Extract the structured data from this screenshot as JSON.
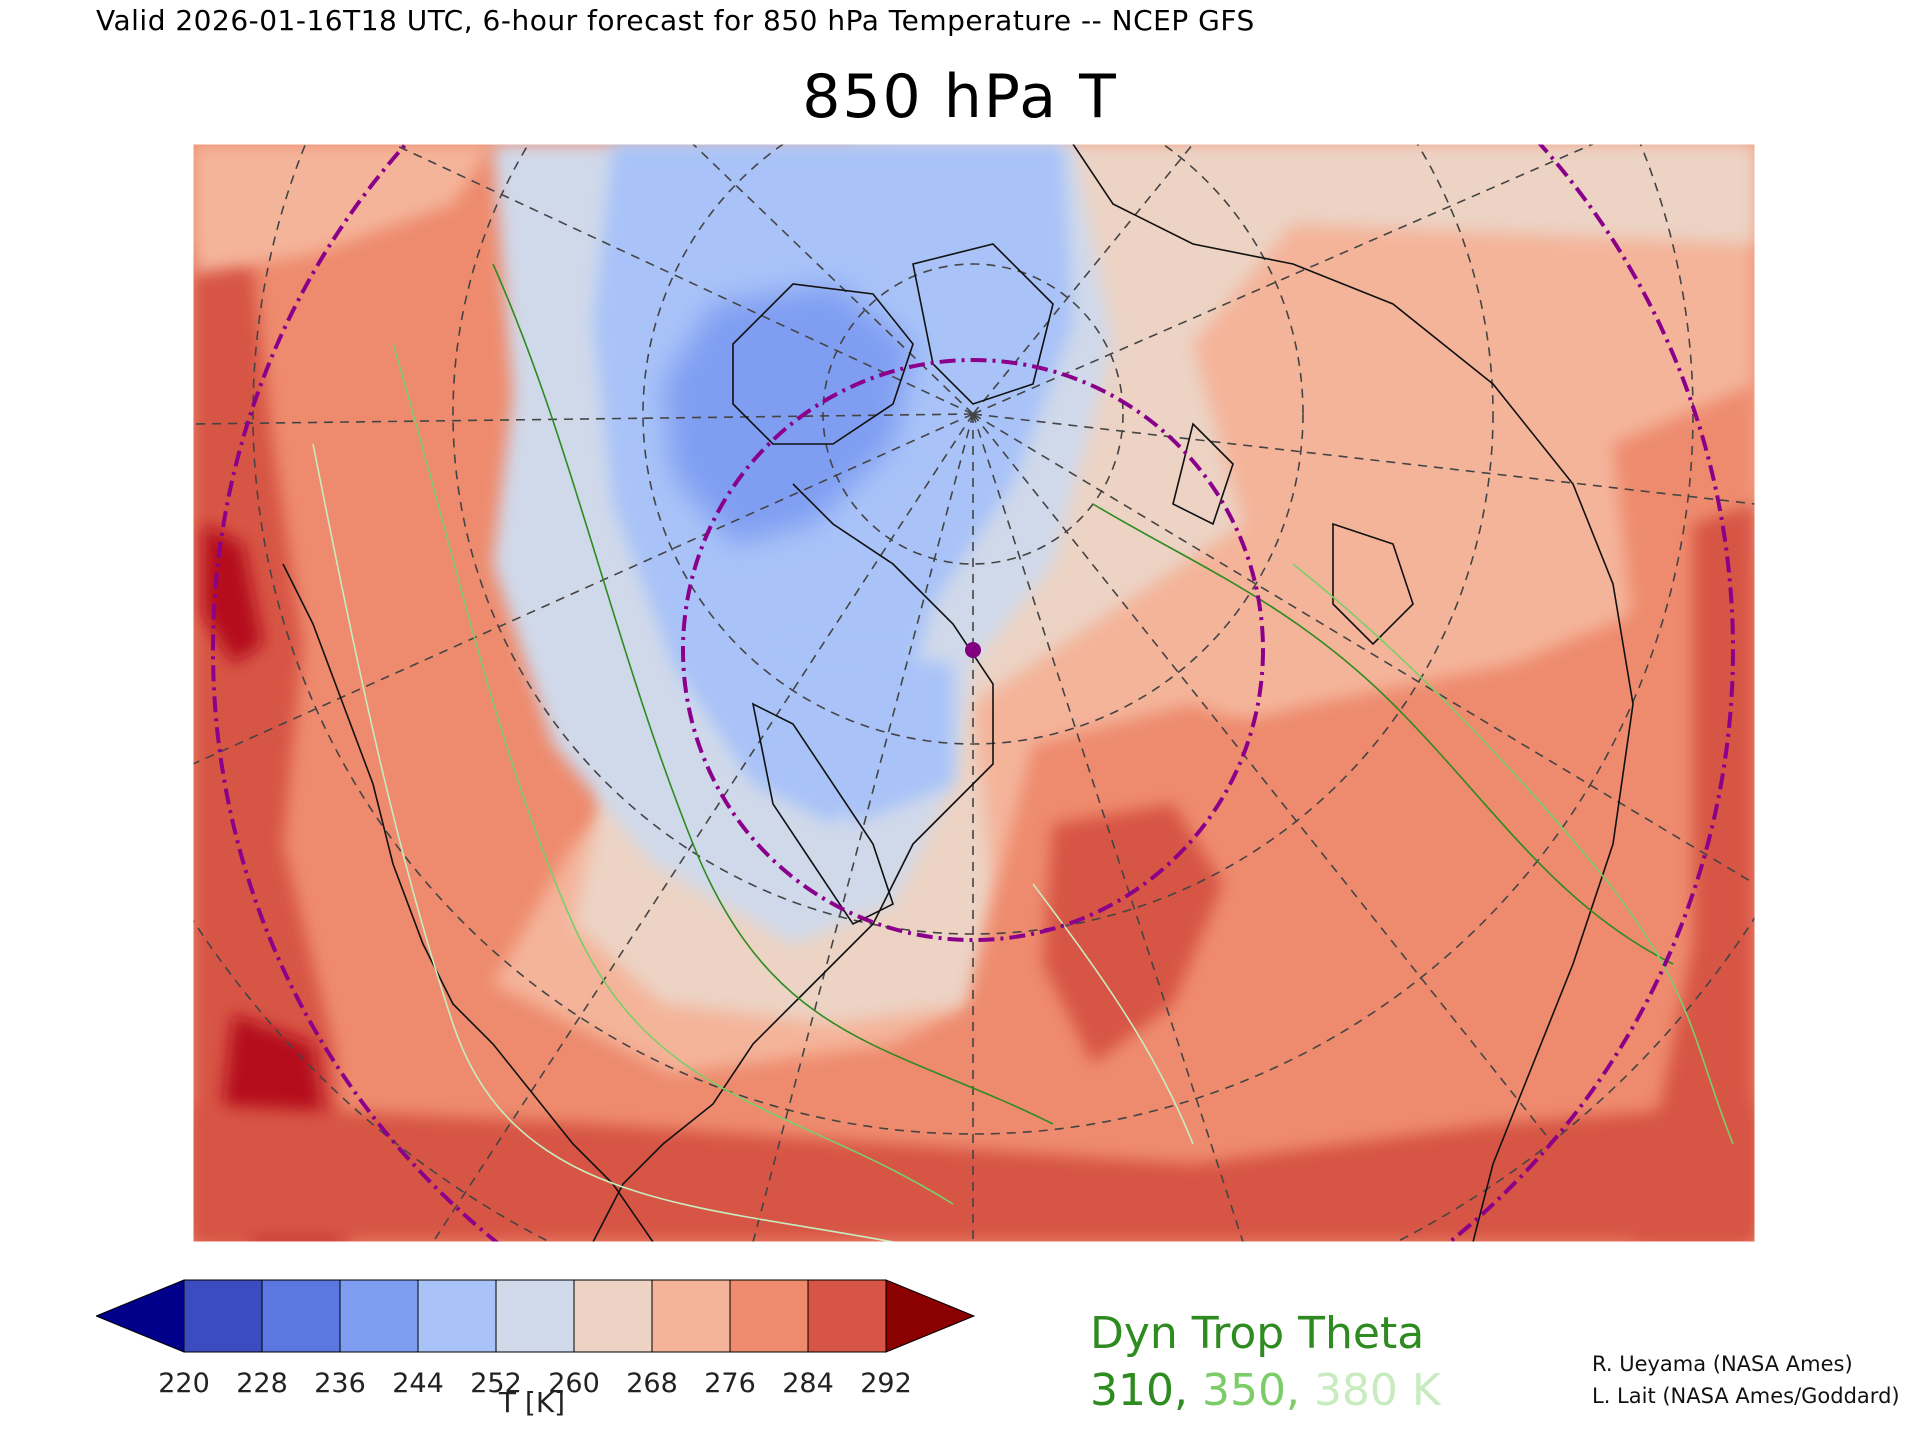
{
  "header": {
    "valid_line": "Valid 2026-01-16T18 UTC, 6-hour forecast for 850 hPa Temperature -- NCEP GFS"
  },
  "map": {
    "title": "850 hPa T",
    "marker_color": "#800080",
    "circle_color": "#8b008b"
  },
  "colorbar": {
    "unit_label": "T [K]",
    "ticks": [
      "220",
      "228",
      "236",
      "244",
      "252",
      "260",
      "268",
      "276",
      "284",
      "292"
    ],
    "bins": [
      {
        "color": "#3b4cc0"
      },
      {
        "color": "#5a78e0"
      },
      {
        "color": "#7f9ef2"
      },
      {
        "color": "#a9c3f8"
      },
      {
        "color": "#d0d9ea"
      },
      {
        "color": "#ecd3c4"
      },
      {
        "color": "#f4b49a"
      },
      {
        "color": "#ee8b6e"
      },
      {
        "color": "#d75545"
      }
    ],
    "under_color": "#00008b",
    "over_color": "#8b0000"
  },
  "dyn_trop_legend": {
    "title": "Dyn Trop Theta",
    "values": [
      {
        "text": "310",
        "color": "#2e8b20"
      },
      {
        "text": "350",
        "color": "#7ccd6a"
      },
      {
        "text": "380",
        "color": "#c8ecc0"
      }
    ],
    "separator": ", ",
    "unit": " K",
    "title_color": "#2e8b20"
  },
  "credits": {
    "line1": "R. Ueyama (NASA Ames)",
    "line2": "L. Lait (NASA Ames/Goddard)"
  }
}
